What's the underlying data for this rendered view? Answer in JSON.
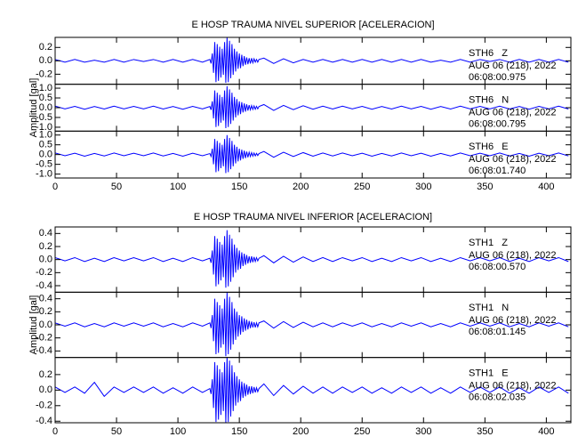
{
  "chart_data": [
    {
      "type": "line",
      "title": "E HOSP TRAUMA NIVEL SUPERIOR [ACELERACION]",
      "ylabel": "Amplitud [gal]",
      "xlim": [
        0,
        420
      ],
      "xticks": [
        0,
        50,
        100,
        150,
        200,
        250,
        300,
        350,
        400
      ],
      "x": [
        0,
        8,
        16,
        24,
        32,
        40,
        48,
        56,
        64,
        72,
        80,
        88,
        96,
        104,
        112,
        120,
        126,
        127,
        128,
        129,
        130,
        131,
        132,
        133,
        134,
        135,
        136,
        137,
        138,
        139,
        140,
        141,
        142,
        143,
        144,
        145,
        146,
        147,
        148,
        149,
        150,
        151,
        152,
        153,
        154,
        155,
        156,
        157,
        158,
        159,
        160,
        161,
        162,
        163,
        164,
        165,
        166,
        170,
        178,
        186,
        194,
        202,
        210,
        218,
        226,
        234,
        242,
        250,
        258,
        266,
        274,
        282,
        290,
        298,
        306,
        314,
        322,
        330,
        338,
        346,
        354,
        362,
        370,
        378,
        386,
        394,
        402,
        410,
        418
      ],
      "series": [
        {
          "name": "STH6   Z",
          "date": "AUG 06 (218), 2022",
          "time": "06:08:00.975",
          "color": "#0000ff",
          "ylim": [
            -0.35,
            0.35
          ],
          "yticks": [
            0.2,
            {
              "value": 0,
              "label": "0.0"
            },
            -0.2
          ],
          "values": [
            0.02,
            -0.02,
            0.02,
            -0.02,
            0.01,
            -0.02,
            0.02,
            -0.02,
            0.02,
            -0.01,
            0.02,
            -0.02,
            0.02,
            -0.02,
            0.02,
            -0.02,
            0.02,
            -0.04,
            0.11,
            -0.18,
            0.28,
            -0.32,
            0.25,
            -0.3,
            0.21,
            -0.25,
            0.18,
            -0.21,
            0.28,
            -0.33,
            0.35,
            -0.32,
            0.3,
            -0.26,
            0.25,
            -0.21,
            0.18,
            -0.16,
            0.14,
            -0.12,
            0.11,
            -0.11,
            0.09,
            -0.08,
            0.07,
            -0.06,
            0.05,
            -0.05,
            0.04,
            -0.04,
            0.04,
            -0.03,
            0.03,
            -0.02,
            0.02,
            -0.02,
            0.02,
            0.04,
            -0.04,
            0.03,
            -0.03,
            0.02,
            -0.02,
            0.02,
            -0.02,
            0.02,
            -0.02,
            0.02,
            -0.02,
            0.02,
            -0.02,
            0.02,
            -0.02,
            0.02,
            -0.02,
            0.01,
            -0.02,
            0.02,
            -0.02,
            0.02,
            -0.01,
            0.02,
            -0.02,
            0.02,
            -0.02,
            0.02,
            -0.02,
            0.02,
            -0.02
          ]
        },
        {
          "name": "STH6   N",
          "date": "AUG 06 (218), 2022",
          "time": "06:08:00.795",
          "color": "#0000ff",
          "ylim": [
            -1.2,
            1.2
          ],
          "yticks": [
            {
              "value": 1,
              "label": "1.0"
            },
            0.5,
            {
              "value": 0,
              "label": "0.0"
            },
            -0.5,
            {
              "value": -1,
              "label": "-1.0"
            }
          ],
          "values": [
            0.08,
            -0.06,
            0.07,
            -0.08,
            0.06,
            -0.07,
            0.08,
            -0.06,
            0.07,
            -0.06,
            0.08,
            -0.07,
            0.06,
            -0.08,
            0.07,
            -0.06,
            0.06,
            -0.11,
            0.33,
            -0.55,
            0.88,
            -0.99,
            0.77,
            -0.94,
            0.66,
            -0.77,
            0.55,
            -0.66,
            0.88,
            -1.05,
            1.1,
            -0.99,
            0.94,
            -0.83,
            0.77,
            -0.66,
            0.55,
            -0.5,
            0.44,
            -0.39,
            0.33,
            -0.33,
            0.28,
            -0.24,
            0.22,
            -0.2,
            0.17,
            -0.15,
            0.13,
            -0.11,
            0.11,
            -0.09,
            0.09,
            -0.08,
            0.07,
            -0.06,
            0.06,
            0.16,
            -0.14,
            0.12,
            -0.1,
            0.1,
            -0.08,
            0.08,
            -0.07,
            0.08,
            -0.06,
            0.07,
            -0.08,
            0.06,
            -0.07,
            0.08,
            -0.06,
            0.07,
            -0.08,
            0.06,
            -0.07,
            0.08,
            -0.06,
            0.07,
            -0.06,
            0.08,
            -0.07,
            0.06,
            -0.08,
            0.07,
            -0.06,
            0.08,
            -0.07
          ]
        },
        {
          "name": "STH6   E",
          "date": "AUG 06 (218), 2022",
          "time": "06:08:01.740",
          "color": "#0000ff",
          "ylim": [
            -1.2,
            1.2
          ],
          "yticks": [
            {
              "value": 1,
              "label": "1.0"
            },
            0.5,
            {
              "value": 0,
              "label": "0.0"
            },
            -0.5,
            {
              "value": -1,
              "label": "-1.0"
            }
          ],
          "values": [
            0.08,
            -0.06,
            0.07,
            -0.08,
            0.06,
            -0.07,
            0.08,
            -0.06,
            0.07,
            -0.06,
            0.08,
            -0.07,
            0.06,
            -0.08,
            0.07,
            -0.06,
            0.05,
            -0.1,
            0.3,
            -0.5,
            0.8,
            -0.9,
            0.7,
            -0.85,
            0.6,
            -0.7,
            0.5,
            -0.6,
            0.8,
            -0.95,
            1.0,
            -0.9,
            0.85,
            -0.75,
            0.7,
            -0.6,
            0.5,
            -0.45,
            0.4,
            -0.35,
            0.3,
            -0.3,
            0.25,
            -0.22,
            0.2,
            -0.18,
            0.15,
            -0.14,
            0.12,
            -0.1,
            0.1,
            -0.08,
            0.08,
            -0.07,
            0.06,
            -0.05,
            0.05,
            0.16,
            -0.14,
            0.12,
            -0.1,
            0.1,
            -0.08,
            0.08,
            -0.07,
            0.08,
            -0.06,
            0.07,
            -0.08,
            0.06,
            -0.07,
            0.08,
            -0.06,
            0.07,
            -0.08,
            0.06,
            -0.07,
            0.08,
            -0.06,
            0.07,
            -0.06,
            0.08,
            -0.07,
            0.06,
            -0.08,
            0.07,
            -0.06,
            0.08,
            -0.07
          ]
        }
      ]
    },
    {
      "type": "line",
      "title": "E HOSP TRAUMA NIVEL INFERIOR [ACELERACION]",
      "ylabel": "Amplitud [gal]",
      "xlim": [
        0,
        420
      ],
      "xticks": [
        0,
        50,
        100,
        150,
        200,
        250,
        300,
        350,
        400
      ],
      "x": [
        0,
        8,
        16,
        24,
        32,
        40,
        48,
        56,
        64,
        72,
        80,
        88,
        96,
        104,
        112,
        120,
        126,
        127,
        128,
        129,
        130,
        131,
        132,
        133,
        134,
        135,
        136,
        137,
        138,
        139,
        140,
        141,
        142,
        143,
        144,
        145,
        146,
        147,
        148,
        149,
        150,
        151,
        152,
        153,
        154,
        155,
        156,
        157,
        158,
        159,
        160,
        161,
        162,
        163,
        164,
        165,
        166,
        170,
        178,
        186,
        194,
        202,
        210,
        218,
        226,
        234,
        242,
        250,
        258,
        266,
        274,
        282,
        290,
        298,
        306,
        314,
        322,
        330,
        338,
        346,
        354,
        362,
        370,
        378,
        386,
        394,
        402,
        410,
        418
      ],
      "series": [
        {
          "name": "STH1   Z",
          "date": "AUG 06 (218), 2022",
          "time": "06:08:00.570",
          "color": "#0000ff",
          "ylim": [
            -0.5,
            0.5
          ],
          "yticks": [
            0.4,
            0.2,
            {
              "value": 0,
              "label": "0.0"
            },
            -0.2,
            -0.4
          ],
          "values": [
            0.03,
            -0.02,
            0.03,
            -0.03,
            0.02,
            -0.03,
            0.03,
            -0.02,
            0.03,
            -0.02,
            0.03,
            -0.03,
            0.02,
            -0.03,
            0.03,
            -0.02,
            0.02,
            -0.05,
            0.14,
            -0.23,
            0.36,
            -0.41,
            0.32,
            -0.38,
            0.27,
            -0.32,
            0.23,
            -0.27,
            0.36,
            -0.43,
            0.45,
            -0.41,
            0.38,
            -0.34,
            0.32,
            -0.27,
            0.23,
            -0.2,
            0.18,
            -0.16,
            0.14,
            -0.14,
            0.11,
            -0.1,
            0.09,
            -0.08,
            0.07,
            -0.06,
            0.05,
            -0.05,
            0.05,
            -0.04,
            0.04,
            -0.03,
            0.03,
            -0.02,
            0.02,
            0.06,
            -0.05,
            0.05,
            -0.04,
            0.04,
            -0.03,
            0.03,
            -0.03,
            0.03,
            -0.02,
            0.03,
            -0.03,
            0.02,
            -0.03,
            0.03,
            -0.02,
            0.03,
            -0.03,
            0.02,
            -0.03,
            0.03,
            -0.02,
            0.03,
            -0.02,
            0.03,
            -0.03,
            0.02,
            -0.03,
            0.03,
            -0.02,
            0.03,
            -0.03
          ]
        },
        {
          "name": "STH1   N",
          "date": "AUG 06 (218), 2022",
          "time": "06:08:01.145",
          "color": "#0000ff",
          "ylim": [
            -0.5,
            0.5
          ],
          "yticks": [
            0.4,
            0.2,
            {
              "value": 0,
              "label": "0.0"
            },
            -0.2,
            -0.4
          ],
          "values": [
            0.03,
            -0.02,
            0.03,
            -0.03,
            0.02,
            -0.03,
            0.03,
            -0.02,
            0.03,
            -0.02,
            0.03,
            -0.03,
            0.02,
            -0.03,
            0.03,
            -0.02,
            0.03,
            -0.05,
            0.15,
            -0.25,
            0.4,
            -0.45,
            0.35,
            -0.43,
            0.3,
            -0.35,
            0.25,
            -0.3,
            0.4,
            -0.48,
            0.5,
            -0.45,
            0.43,
            -0.38,
            0.35,
            -0.3,
            0.25,
            -0.23,
            0.2,
            -0.18,
            0.15,
            -0.15,
            0.13,
            -0.11,
            0.1,
            -0.09,
            0.08,
            -0.07,
            0.06,
            -0.05,
            0.05,
            -0.04,
            0.04,
            -0.04,
            0.03,
            -0.03,
            0.03,
            0.06,
            -0.05,
            0.05,
            -0.04,
            0.04,
            -0.03,
            0.03,
            -0.03,
            0.03,
            -0.02,
            0.03,
            -0.03,
            0.02,
            -0.03,
            0.03,
            -0.02,
            0.03,
            -0.03,
            0.02,
            -0.03,
            0.03,
            -0.02,
            0.03,
            -0.02,
            0.03,
            -0.03,
            0.02,
            -0.03,
            0.03,
            -0.02,
            0.03,
            -0.03
          ]
        },
        {
          "name": "STH1   E",
          "date": "AUG 06 (218), 2022",
          "time": "06:08:02.035",
          "color": "#0000ff",
          "ylim": [
            -0.42,
            0.42
          ],
          "yticks": [
            0.2,
            {
              "value": 0,
              "label": "0.0"
            },
            -0.2,
            -0.4
          ],
          "values": [
            0.04,
            -0.03,
            0.04,
            -0.04,
            0.1,
            -0.08,
            0.04,
            -0.03,
            0.04,
            -0.03,
            0.04,
            -0.04,
            0.03,
            -0.04,
            0.04,
            -0.03,
            0.02,
            -0.05,
            0.14,
            -0.23,
            0.36,
            -0.41,
            0.32,
            -0.38,
            0.27,
            -0.32,
            0.23,
            -0.27,
            0.36,
            -0.43,
            0.45,
            -0.41,
            0.38,
            -0.34,
            0.32,
            -0.27,
            0.23,
            -0.2,
            0.18,
            -0.16,
            0.14,
            -0.14,
            0.11,
            -0.1,
            0.09,
            -0.08,
            0.07,
            -0.06,
            0.05,
            -0.05,
            0.05,
            -0.04,
            0.04,
            -0.03,
            0.03,
            -0.02,
            0.02,
            0.08,
            -0.07,
            0.06,
            -0.05,
            0.05,
            -0.04,
            0.04,
            -0.04,
            0.04,
            -0.03,
            0.04,
            -0.04,
            0.03,
            -0.04,
            0.04,
            -0.03,
            0.04,
            -0.04,
            0.03,
            -0.04,
            0.04,
            -0.03,
            0.04,
            -0.03,
            0.04,
            -0.04,
            0.03,
            -0.04,
            0.04,
            -0.03,
            0.04,
            -0.04
          ]
        }
      ]
    }
  ]
}
